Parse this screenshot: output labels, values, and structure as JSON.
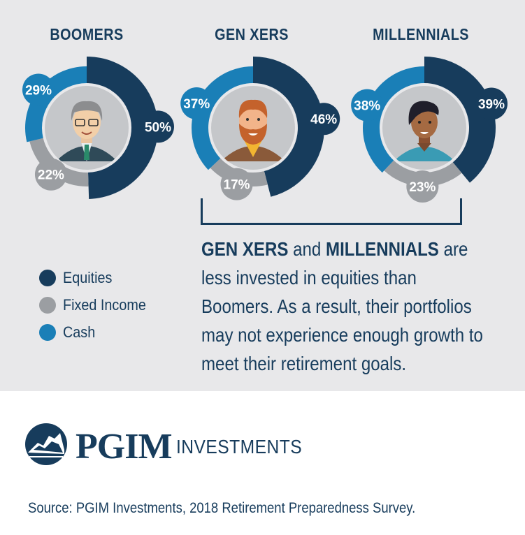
{
  "chart_data": [
    {
      "type": "pie",
      "title": "BOOMERS",
      "categories": [
        "Equities",
        "Fixed Income",
        "Cash"
      ],
      "values": [
        50,
        22,
        29
      ],
      "labels": [
        "50%",
        "22%",
        "29%"
      ]
    },
    {
      "type": "pie",
      "title": "GEN XERS",
      "categories": [
        "Equities",
        "Fixed Income",
        "Cash"
      ],
      "values": [
        46,
        17,
        37
      ],
      "labels": [
        "46%",
        "17%",
        "37%"
      ]
    },
    {
      "type": "pie",
      "title": "MILLENNIALS",
      "categories": [
        "Equities",
        "Fixed Income",
        "Cash"
      ],
      "values": [
        39,
        23,
        38
      ],
      "labels": [
        "39%",
        "23%",
        "38%"
      ]
    }
  ],
  "colors": {
    "equities": "#173c5c",
    "fixed_income": "#9b9ea2",
    "cash": "#1a7fb7",
    "center": "#c5c7ca"
  },
  "legend": [
    {
      "label": "Equities",
      "color": "#173c5c"
    },
    {
      "label": "Fixed Income",
      "color": "#9b9ea2"
    },
    {
      "label": "Cash",
      "color": "#1a7fb7"
    }
  ],
  "message": {
    "bold1": "GEN XERS",
    "text1": " and ",
    "bold2": "MILLENNIALS",
    "text2": " are less invested in equities than Boomers. As a result, their portfolios may not experience enough growth to meet their retirement goals."
  },
  "brand": {
    "name": "PGIM",
    "sub": "INVESTMENTS"
  },
  "source": "Source: PGIM Investments, 2018 Retirement Preparedness Survey.",
  "icons": [
    "boomer-avatar-icon",
    "genx-avatar-icon",
    "millennial-avatar-icon",
    "pgim-logo-icon"
  ]
}
